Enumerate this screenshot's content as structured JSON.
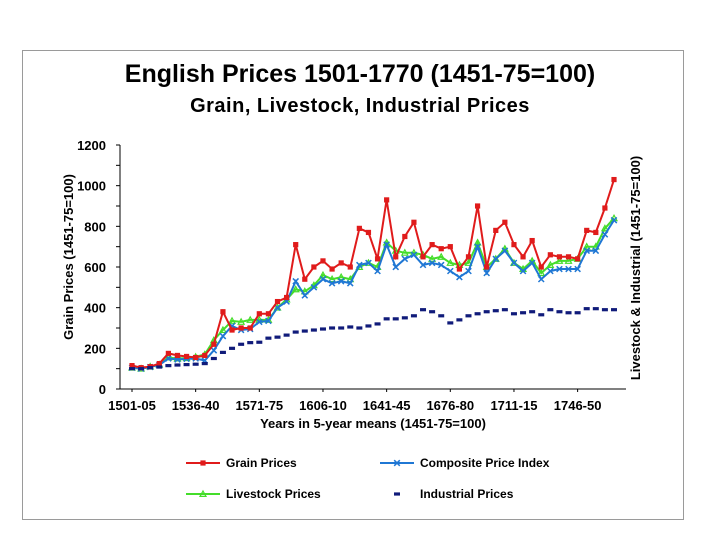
{
  "chart_data": {
    "type": "line",
    "title": "English Prices 1501-1770 (1451-75=100)",
    "subtitle": "Grain, Livestock, Industrial Prices",
    "xlabel": "Years in 5-year means (1451-75=100)",
    "ylabel": "Grain Prices (1451-75=100)",
    "y2label": "Livestock & Industrial (1451-75=100)",
    "ylim": [
      0,
      1200
    ],
    "yticks": [
      0,
      200,
      400,
      600,
      800,
      1000,
      1200
    ],
    "ytick_labels": [
      "0",
      "200",
      "400",
      "600",
      "800",
      "1000",
      "1200"
    ],
    "xtick_labels": [
      "1501-05",
      "1536-40",
      "1571-75",
      "1606-10",
      "1641-45",
      "1676-80",
      "1711-15",
      "1746-50"
    ],
    "grid": false,
    "legend_placement": "bottom",
    "x_count": 54,
    "series": [
      {
        "name": "Grain Prices",
        "color": "#e01b1b",
        "marker": "square",
        "values": [
          115,
          105,
          110,
          125,
          175,
          165,
          160,
          155,
          165,
          220,
          380,
          290,
          300,
          300,
          370,
          370,
          430,
          450,
          710,
          540,
          600,
          630,
          590,
          620,
          600,
          790,
          770,
          640,
          930,
          650,
          750,
          820,
          650,
          710,
          690,
          700,
          590,
          650,
          900,
          600,
          780,
          820,
          710,
          650,
          730,
          600,
          660,
          650,
          650,
          640,
          780,
          770,
          890,
          1030
        ]
      },
      {
        "name": "Composite Price Index",
        "color": "#1f77d4",
        "marker": "x",
        "values": [
          105,
          100,
          108,
          118,
          150,
          145,
          148,
          150,
          140,
          190,
          260,
          310,
          290,
          295,
          330,
          335,
          400,
          430,
          530,
          460,
          500,
          540,
          520,
          530,
          520,
          610,
          620,
          580,
          710,
          600,
          640,
          660,
          610,
          620,
          610,
          580,
          550,
          580,
          700,
          570,
          640,
          680,
          620,
          580,
          620,
          540,
          580,
          590,
          590,
          590,
          680,
          680,
          760,
          830
        ]
      },
      {
        "name": "Livestock Prices",
        "color": "#44dd2a",
        "marker": "triangle",
        "values": [
          105,
          100,
          110,
          120,
          155,
          150,
          152,
          158,
          170,
          240,
          290,
          335,
          330,
          340,
          340,
          340,
          400,
          440,
          490,
          480,
          510,
          560,
          540,
          550,
          540,
          600,
          620,
          600,
          720,
          680,
          670,
          670,
          660,
          640,
          650,
          620,
          610,
          620,
          720,
          600,
          640,
          690,
          620,
          590,
          630,
          570,
          610,
          630,
          630,
          640,
          700,
          700,
          790,
          840
        ]
      },
      {
        "name": "Industrial Prices",
        "color": "#101b7a",
        "marker": "dash",
        "values": [
          100,
          100,
          105,
          108,
          115,
          118,
          120,
          122,
          125,
          150,
          180,
          200,
          220,
          228,
          230,
          250,
          255,
          265,
          280,
          285,
          290,
          295,
          300,
          300,
          305,
          300,
          310,
          320,
          345,
          345,
          350,
          360,
          390,
          380,
          360,
          325,
          340,
          360,
          370,
          380,
          385,
          390,
          370,
          375,
          380,
          365,
          390,
          380,
          375,
          375,
          395,
          395,
          390,
          390
        ]
      }
    ]
  }
}
